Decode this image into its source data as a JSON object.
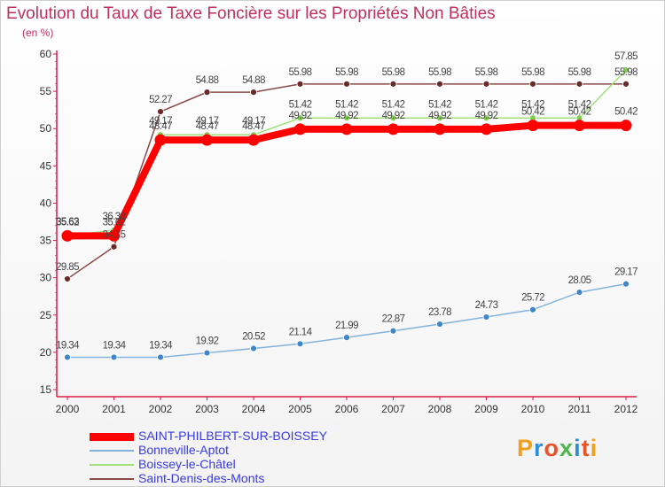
{
  "header": {
    "title": "Evolution du Taux de Taxe Foncière sur les Propriétés Non Bâties",
    "unit": "(en %)"
  },
  "brand": {
    "logo": [
      "P",
      "r",
      "o",
      "x",
      "i",
      "t",
      "i"
    ],
    "logo_colors": [
      "#f0a020",
      "#2a8fd8",
      "#e8532a",
      "#4cb84c",
      "#2a8fd8",
      "#e8532a",
      "#f0a020"
    ]
  },
  "chart_data": {
    "type": "line",
    "title": "Evolution du Taux de Taxe Foncière sur les Propriétés Non Bâties",
    "xlabel": "",
    "ylabel": "(en %)",
    "x": [
      "2000",
      "2001",
      "2002",
      "2003",
      "2004",
      "2005",
      "2006",
      "2007",
      "2008",
      "2009",
      "2010",
      "2011",
      "2012"
    ],
    "ylim": [
      15,
      60
    ],
    "yticks": [
      15,
      20,
      25,
      30,
      35,
      40,
      45,
      50,
      55,
      60
    ],
    "grid": false,
    "legend_position": "bottom-left",
    "series": [
      {
        "name": "SAINT-PHILBERT-SUR-BOISSEY",
        "color": "#ff0000",
        "marker_color": "#ff0000",
        "values": [
          35.62,
          35.62,
          48.47,
          48.47,
          48.47,
          49.92,
          49.92,
          49.92,
          49.92,
          49.92,
          50.42,
          50.42,
          50.42
        ],
        "labels": [
          "35.62",
          "35.62",
          "48.47",
          "48.47",
          "48.47",
          "49.92",
          "49.92",
          "49.92",
          "49.92",
          "49.92",
          "50.42",
          "50.42",
          "50.42"
        ]
      },
      {
        "name": "Bonneville-Aptot",
        "color": "#82b3dc",
        "marker_color": "#3f86c9",
        "values": [
          19.34,
          19.34,
          19.34,
          19.92,
          20.52,
          21.14,
          21.99,
          22.87,
          23.78,
          24.73,
          25.72,
          28.05,
          29.17
        ],
        "labels": [
          "19.34",
          "19.34",
          "19.34",
          "19.92",
          "20.52",
          "21.14",
          "21.99",
          "22.87",
          "23.78",
          "24.73",
          "25.72",
          "28.05",
          "29.17"
        ]
      },
      {
        "name": "Boissey-le-Châtel",
        "color": "#9fe07a",
        "marker_color": "#7fcf4a",
        "values": [
          35.63,
          36.38,
          49.17,
          49.17,
          49.17,
          51.42,
          51.42,
          51.42,
          51.42,
          51.42,
          51.42,
          51.42,
          57.85
        ],
        "labels": [
          "35.63",
          "36.38",
          "49.17",
          "49.17",
          "49.17",
          "51.42",
          "51.42",
          "51.42",
          "51.42",
          "51.42",
          "51.42",
          "51.42",
          "57.85"
        ]
      },
      {
        "name": "Saint-Denis-des-Monts",
        "color": "#8a4a4a",
        "marker_color": "#6a2a2a",
        "values": [
          29.85,
          34.15,
          52.27,
          54.88,
          54.88,
          55.98,
          55.98,
          55.98,
          55.98,
          55.98,
          55.98,
          55.98,
          55.98
        ],
        "labels": [
          "29.85",
          "34.15",
          "52.27",
          "54.88",
          "54.88",
          "55.98",
          "55.98",
          "55.98",
          "55.98",
          "55.98",
          "55.98",
          "55.98",
          "55.98"
        ]
      }
    ]
  }
}
